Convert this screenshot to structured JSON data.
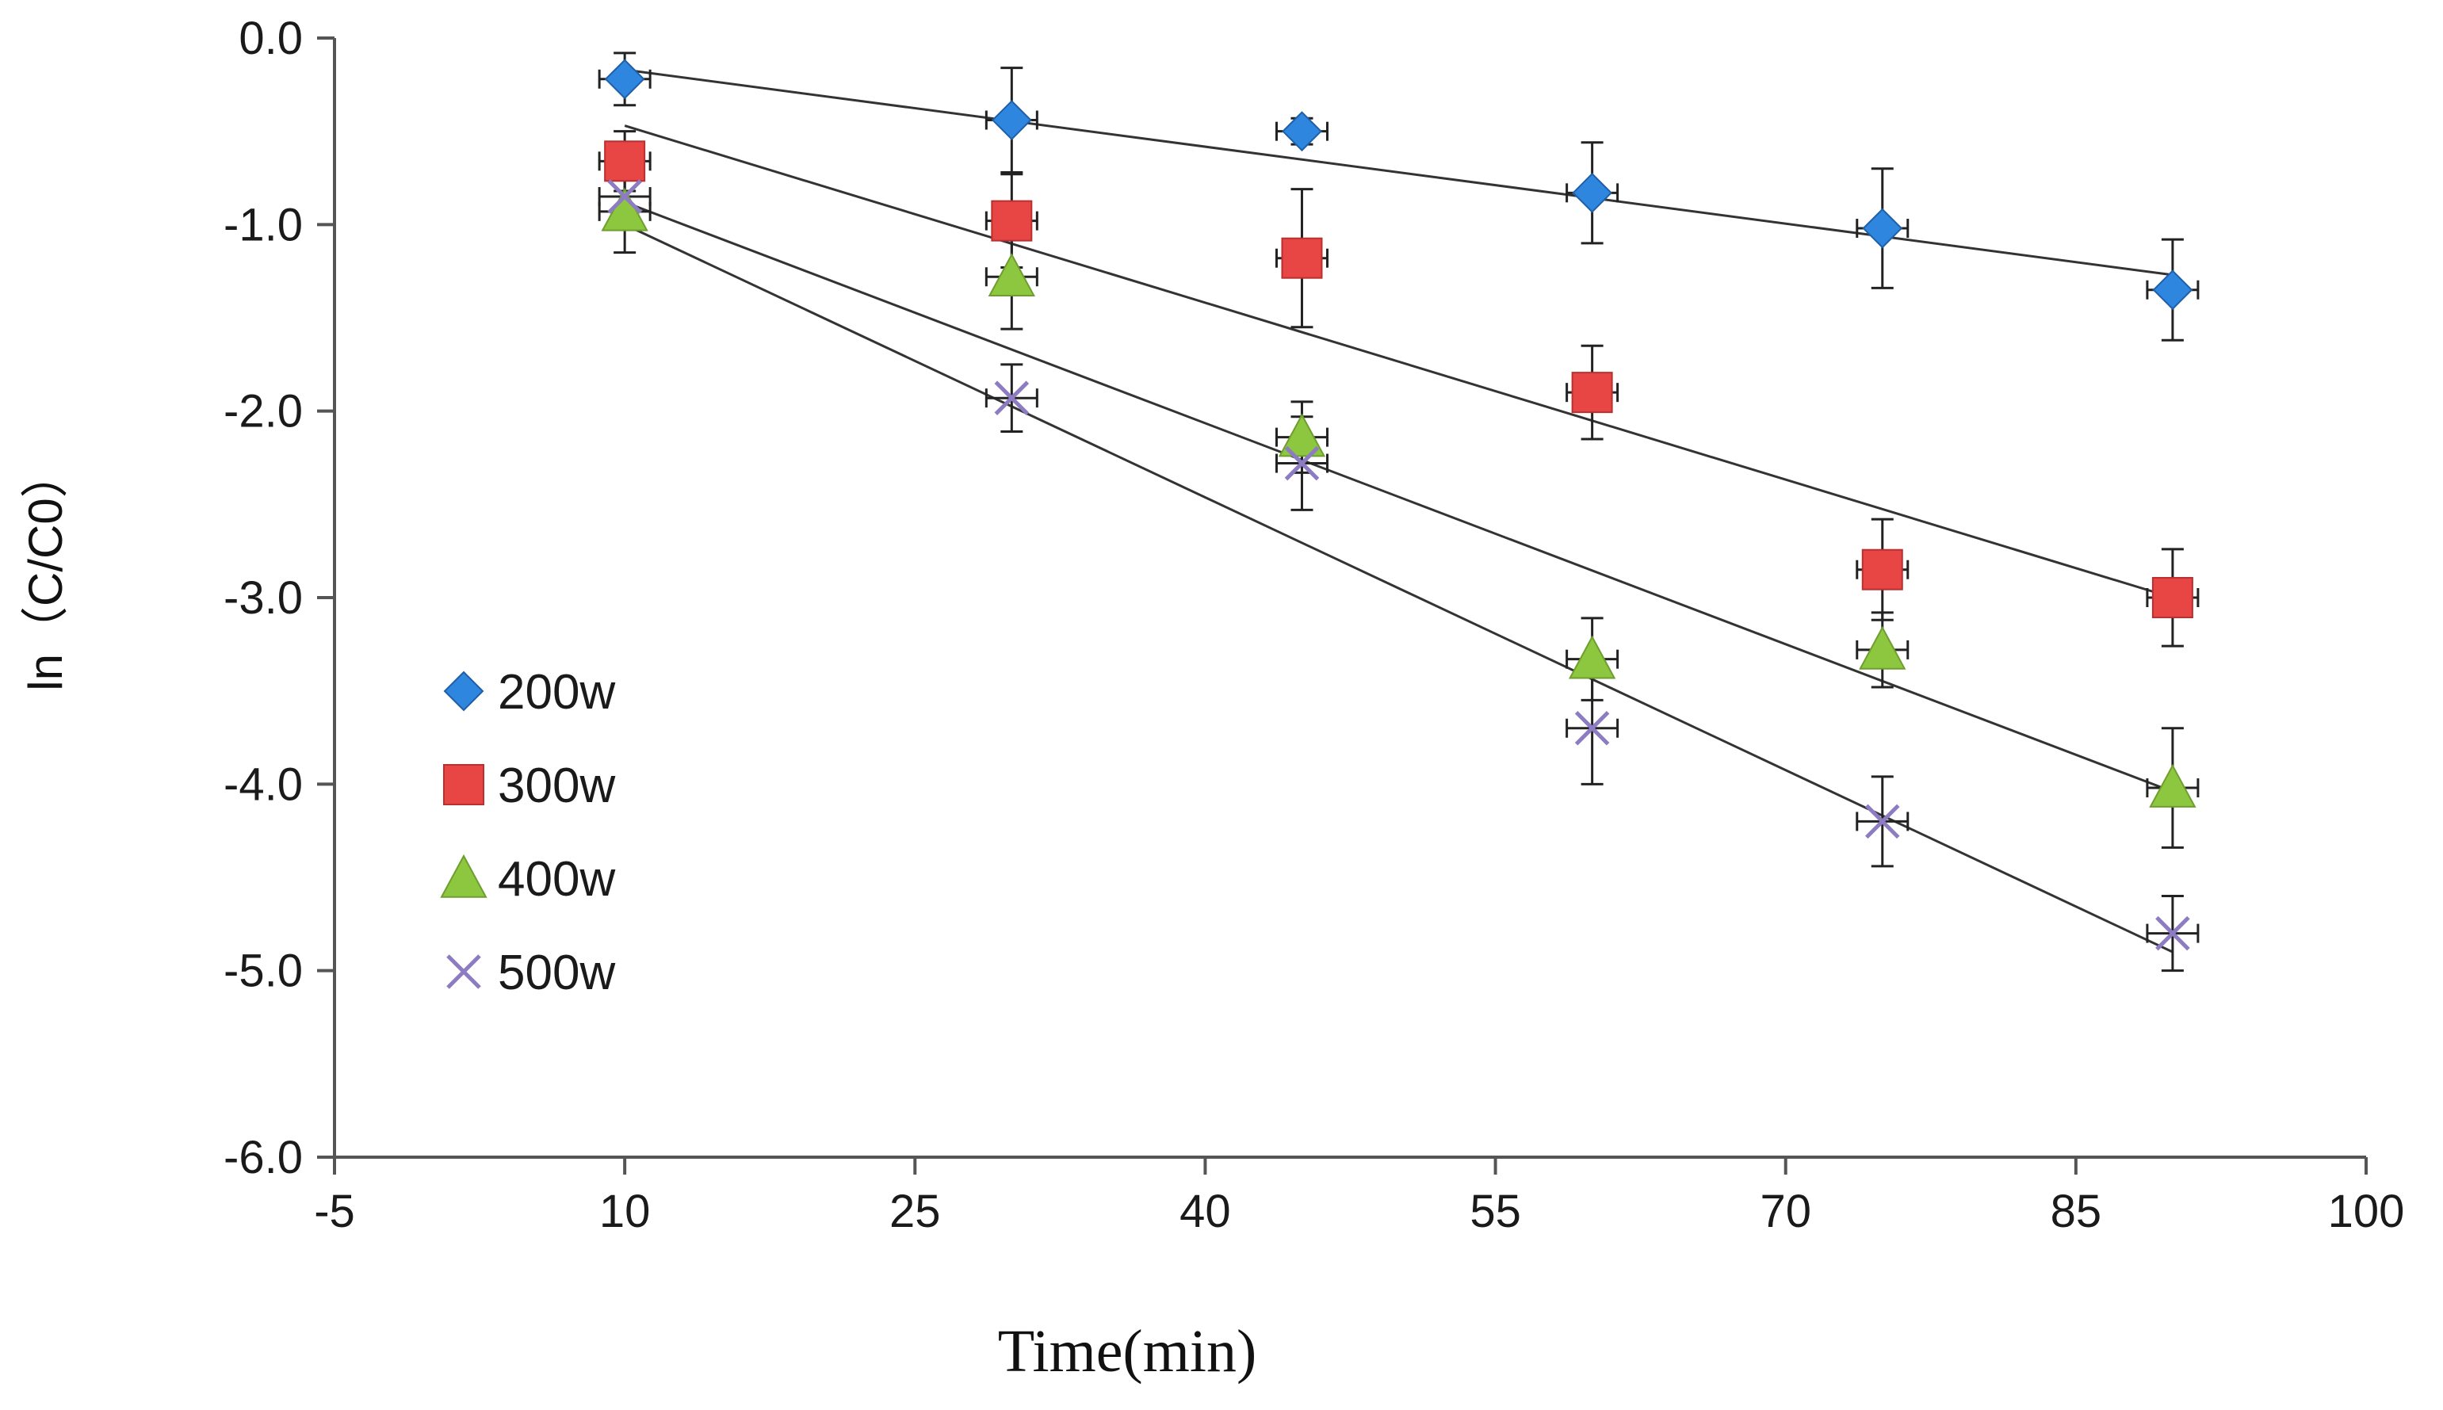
{
  "chart_data": {
    "type": "scatter",
    "title": "",
    "xlabel": "Time(min)",
    "ylabel": "ln（C/C0）",
    "xlim": [
      -5,
      100
    ],
    "ylim": [
      -6,
      0
    ],
    "x_ticks": [
      "-5",
      "10",
      "25",
      "40",
      "55",
      "70",
      "85",
      "100"
    ],
    "y_ticks": [
      "0.0",
      "-1.0",
      "-2.0",
      "-3.0",
      "-4.0",
      "-5.0",
      "-6.0"
    ],
    "x_tick_values": [
      -5,
      10,
      25,
      40,
      55,
      70,
      85,
      100
    ],
    "y_tick_values": [
      0,
      -1,
      -2,
      -3,
      -4,
      -5,
      -6
    ],
    "grid": false,
    "legend_position": "left-middle",
    "x": [
      10,
      30,
      45,
      60,
      75,
      90
    ],
    "series": [
      {
        "name": "200w",
        "marker": "diamond",
        "color": "#2E86DE",
        "values": [
          -0.22,
          -0.44,
          -0.5,
          -0.83,
          -1.02,
          -1.35
        ],
        "errors": [
          0.14,
          0.28,
          0.07,
          0.27,
          0.32,
          0.27
        ],
        "fit": {
          "x0": 10,
          "y0": -0.17,
          "x1": 90,
          "y1": -1.27
        }
      },
      {
        "name": "300w",
        "marker": "square",
        "color": "#E84545",
        "values": [
          -0.66,
          -0.98,
          -1.18,
          -1.9,
          -2.85,
          -3.0
        ],
        "errors": [
          0.16,
          0.25,
          0.37,
          0.25,
          0.27,
          0.26
        ],
        "fit": {
          "x0": 10,
          "y0": -0.47,
          "x1": 90,
          "y1": -3.0
        }
      },
      {
        "name": "400w",
        "marker": "triangle",
        "color": "#8DC63F",
        "values": [
          -0.93,
          -1.28,
          -2.14,
          -3.33,
          -3.28,
          -4.02
        ],
        "errors": [
          0.22,
          0.28,
          0.19,
          0.22,
          0.2,
          0.32
        ],
        "fit": {
          "x0": 10,
          "y0": -0.88,
          "x1": 90,
          "y1": -4.04
        }
      },
      {
        "name": "500w",
        "marker": "x",
        "color": "#8E7CC3",
        "values": [
          -0.85,
          -1.93,
          -2.28,
          -3.7,
          -4.2,
          -4.8
        ],
        "errors": [
          0.14,
          0.18,
          0.25,
          0.3,
          0.24,
          0.2
        ],
        "fit": {
          "x0": 10,
          "y0": -1.0,
          "x1": 90,
          "y1": -4.9
        }
      }
    ]
  }
}
